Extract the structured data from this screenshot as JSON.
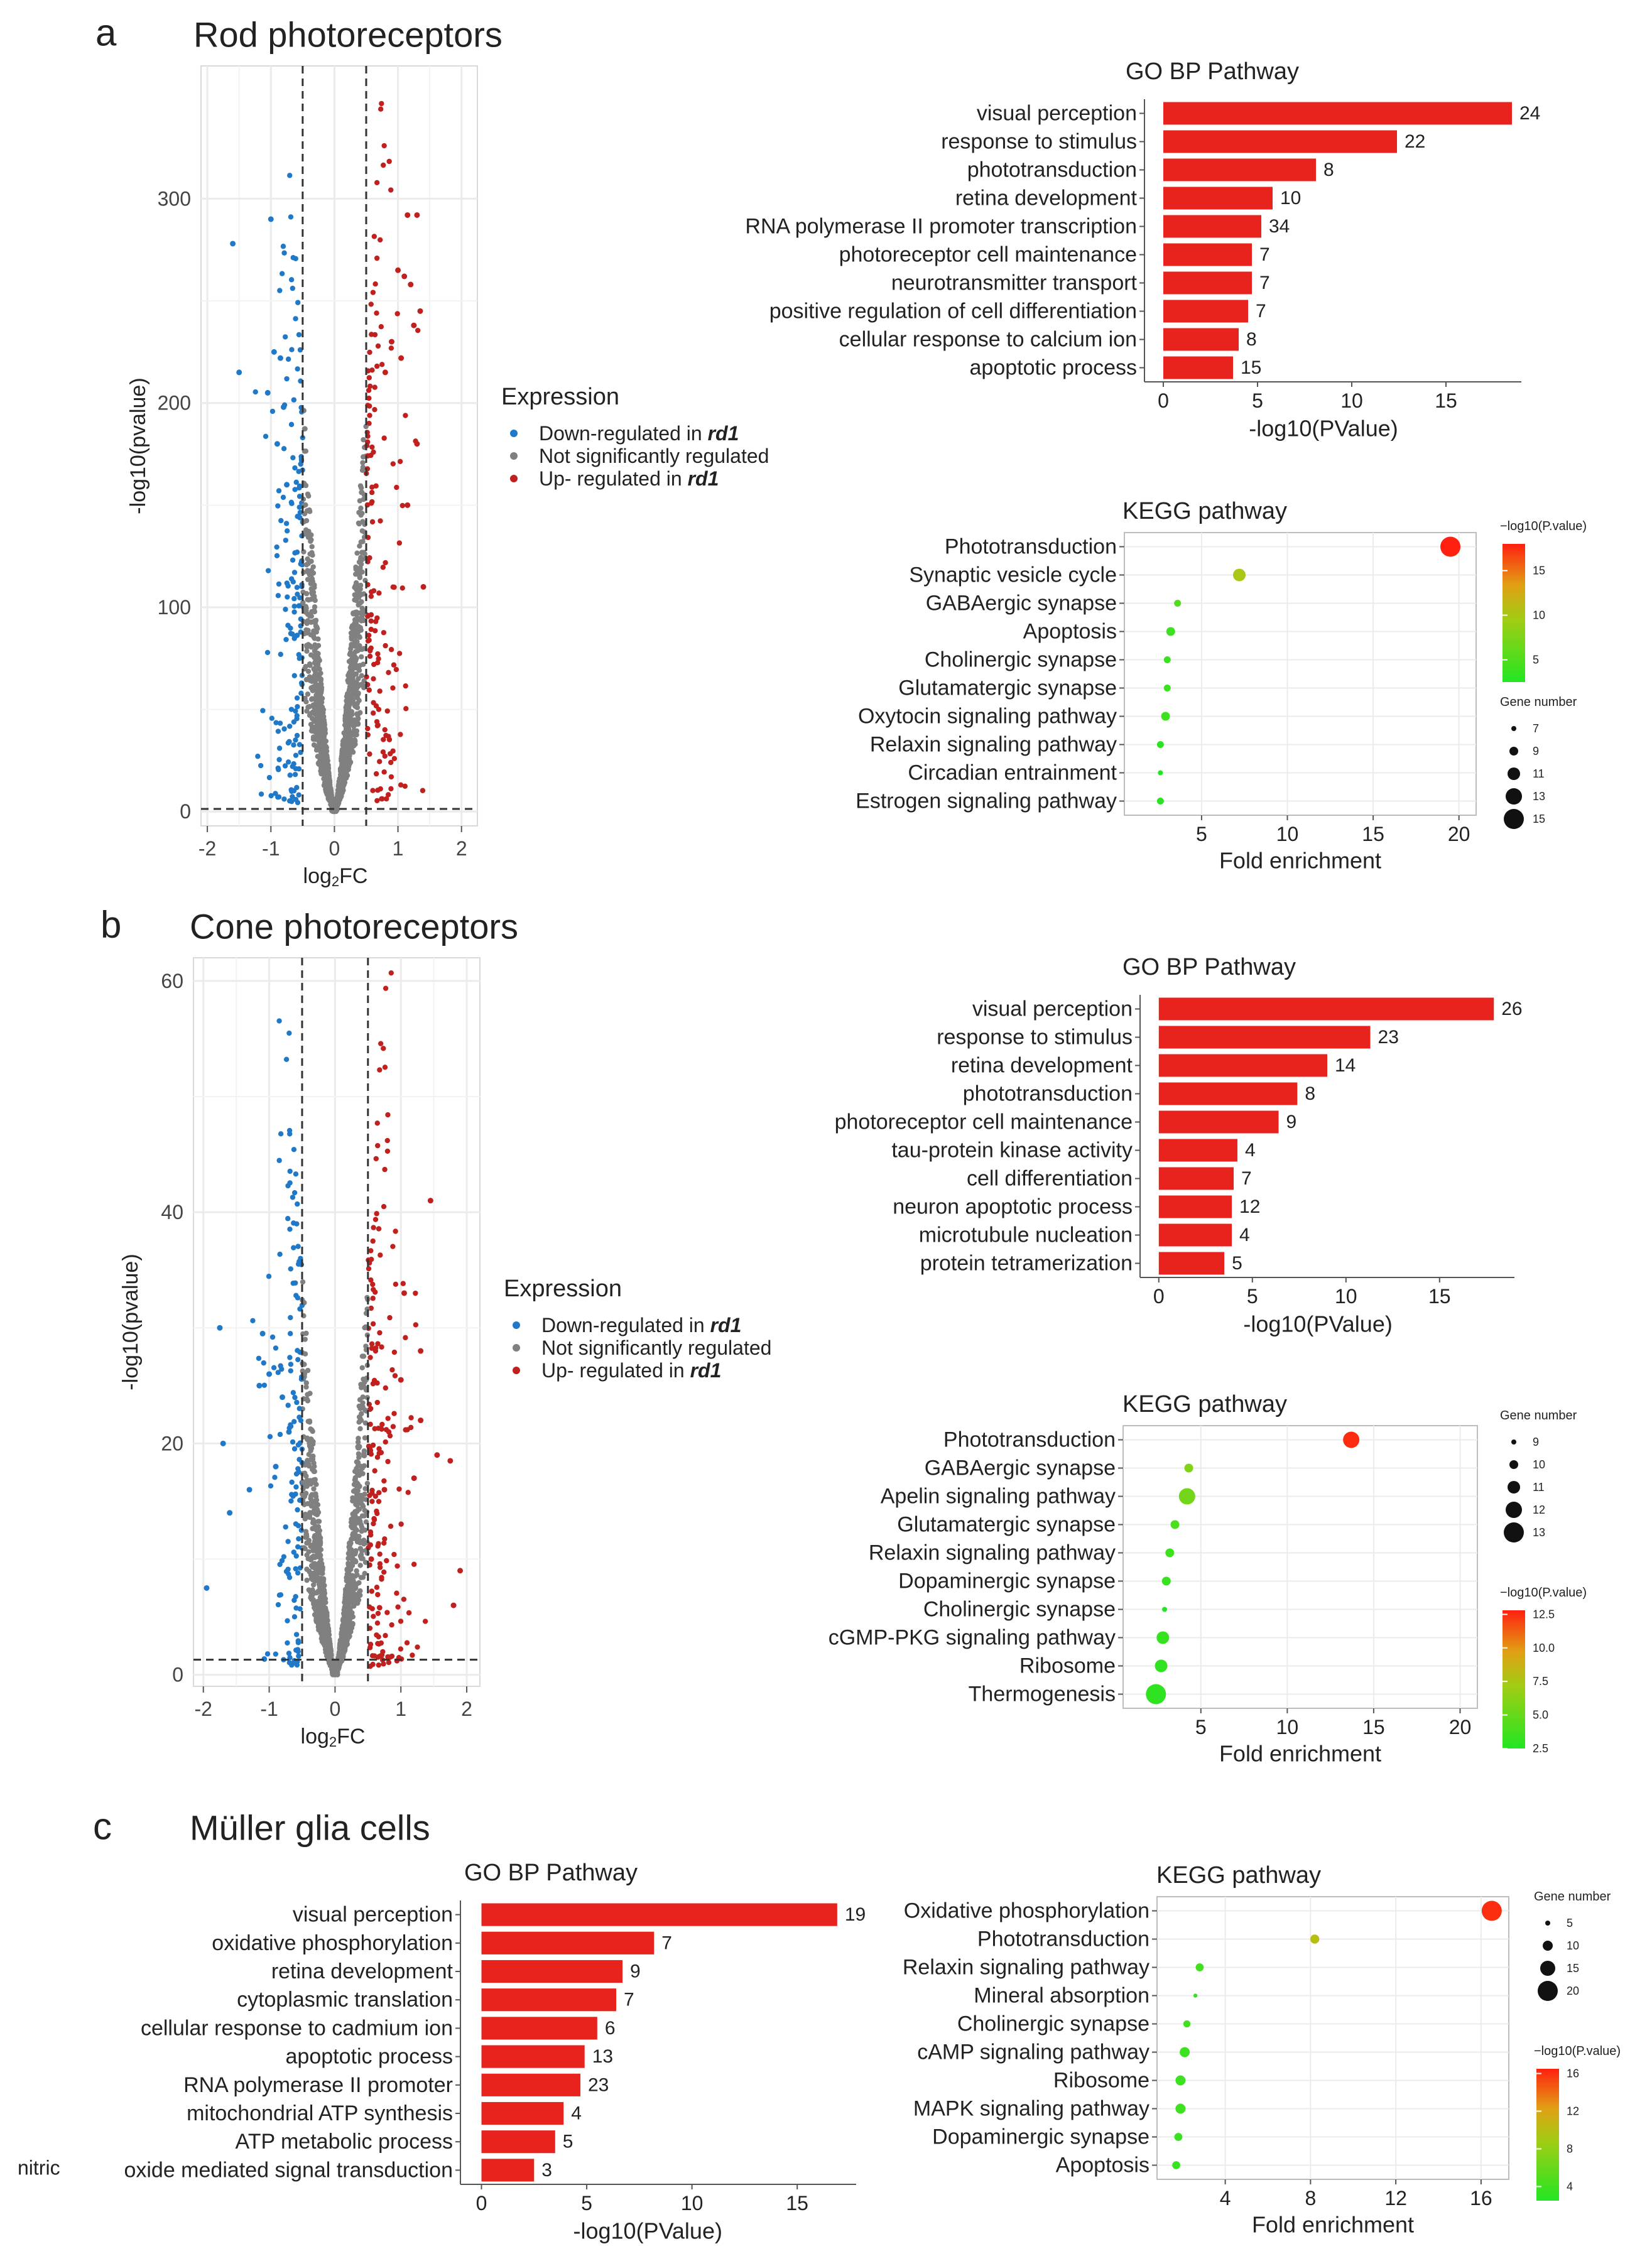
{
  "figure": {
    "panels": [
      {
        "letter": "a",
        "title": "Rod photoreceptors"
      },
      {
        "letter": "b",
        "title": "Cone photoreceptors"
      },
      {
        "letter": "c",
        "title": "Müller glia cells"
      }
    ],
    "legend": {
      "title": "Expression",
      "items": [
        {
          "pre": "Down-regulated in ",
          "em": "rd1",
          "color": "#1f78c8"
        },
        {
          "pre": "Not significantly regulated",
          "em": "",
          "color": "#808080"
        },
        {
          "pre": "Up- regulated in ",
          "em": "rd1",
          "color": "#c0201e"
        }
      ]
    },
    "colors": {
      "bar": "#e8231e",
      "down": "#1f78c8",
      "up": "#c0201e",
      "ns": "#808080",
      "grid": "#ebebeb",
      "low": "#22e622",
      "high": "#ff2010"
    },
    "size_legend_title": "Gene number",
    "color_legend_title": "−log10(P.value)"
  },
  "chart_data": [
    {
      "id": "rod-volcano",
      "type": "scatter",
      "panel": "a",
      "xlabel": "log2FC",
      "ylabel": "-log10(pvalue)",
      "xlim": [
        -2.1,
        2.25
      ],
      "ylim": [
        -7,
        365
      ],
      "xticks": [
        -2,
        -1,
        0,
        1,
        2
      ],
      "yticks": [
        0,
        100,
        200,
        300
      ],
      "thresholds": {
        "fc": 0.5,
        "y": 1.3
      },
      "highlight_down": [
        [
          -1.6,
          278
        ],
        [
          -1.0,
          290
        ],
        [
          -1.5,
          215
        ],
        [
          -0.95,
          225
        ],
        [
          -0.85,
          222
        ],
        [
          -1.05,
          205
        ],
        [
          -0.8,
          198
        ],
        [
          -0.9,
          180
        ],
        [
          -0.75,
          160
        ]
      ],
      "highlight_up": [
        [
          1.15,
          292
        ],
        [
          1.3,
          292
        ],
        [
          1.0,
          265
        ],
        [
          1.1,
          262
        ],
        [
          1.2,
          258
        ],
        [
          1.35,
          245
        ],
        [
          1.25,
          238
        ],
        [
          0.9,
          230
        ],
        [
          1.05,
          222
        ],
        [
          0.8,
          215
        ],
        [
          1.3,
          180
        ],
        [
          1.15,
          150
        ],
        [
          1.4,
          110
        ]
      ]
    },
    {
      "id": "rod-go",
      "type": "bar",
      "panel": "a",
      "title": "GO BP Pathway",
      "categories": [
        "visual perception",
        "response to stimulus",
        "phototransduction",
        "retina development",
        "RNA polymerase II promoter transcription",
        "photoreceptor cell maintenance",
        "neurotransmitter transport",
        "positive regulation of cell differentiation",
        "cellular response to calcium ion",
        "apoptotic process"
      ],
      "values": [
        18.5,
        12.4,
        8.1,
        5.8,
        5.2,
        4.7,
        4.7,
        4.5,
        4.0,
        3.7
      ],
      "labels": [
        "24",
        "22",
        "8",
        "10",
        "34",
        "7",
        "7",
        "7",
        "8",
        "15"
      ],
      "xlabel": "-log10(PValue)",
      "xlim": [
        -1,
        19
      ],
      "xticks": [
        0,
        5,
        10,
        15
      ]
    },
    {
      "id": "rod-kegg",
      "type": "scatter",
      "panel": "a",
      "title": "KEGG pathway",
      "categories": [
        "Phototransduction",
        "Synaptic vesicle cycle",
        "GABAergic synapse",
        "Apoptosis",
        "Cholinergic synapse",
        "Glutamatergic synapse",
        "Oxytocin signaling pathway",
        "Relaxin signaling pathway",
        "Circadian entrainment",
        "Estrogen signaling pathway"
      ],
      "values": [
        19.5,
        7.2,
        3.6,
        3.2,
        3.0,
        3.0,
        2.9,
        2.6,
        2.6,
        2.6
      ],
      "gene_number": [
        15,
        11,
        8,
        9,
        8,
        8,
        9,
        8,
        7,
        8
      ],
      "pvalue": [
        18,
        10,
        5,
        4,
        3.8,
        3.8,
        4,
        3,
        2.5,
        3
      ],
      "xlabel": "Fold enrichment",
      "xlim": [
        0.5,
        21
      ],
      "xticks": [
        5,
        10,
        15,
        20
      ],
      "size_legend": {
        "values": [
          7,
          9,
          11,
          13,
          15
        ],
        "labels": [
          "7",
          "9",
          "11",
          "13",
          "15"
        ]
      },
      "color_legend": {
        "min": 2.5,
        "max": 18,
        "labels": [
          "15",
          "10",
          "5"
        ],
        "label_values": [
          15,
          10,
          5
        ]
      }
    },
    {
      "id": "cone-volcano",
      "type": "scatter",
      "panel": "b",
      "xlabel": "log2FC",
      "ylabel": "-log10(pvalue)",
      "xlim": [
        -2.15,
        2.2
      ],
      "ylim": [
        -1,
        62
      ],
      "xticks": [
        -2,
        -1,
        0,
        1,
        2
      ],
      "yticks": [
        0,
        20,
        40,
        60
      ],
      "thresholds": {
        "fc": 0.5,
        "y": 1.3
      },
      "highlight_down": [
        [
          -1.75,
          30
        ],
        [
          -1.1,
          29.5
        ],
        [
          -1.7,
          20
        ],
        [
          -1.15,
          25
        ],
        [
          -1.0,
          26
        ],
        [
          -0.8,
          24
        ],
        [
          -0.7,
          21
        ],
        [
          -1.6,
          14
        ],
        [
          -0.9,
          18
        ],
        [
          -1.3,
          16
        ],
        [
          -1.95,
          7.5
        ]
      ],
      "highlight_up": [
        [
          1.45,
          41
        ],
        [
          1.05,
          33
        ],
        [
          1.3,
          28
        ],
        [
          1.0,
          25.5
        ],
        [
          1.3,
          22
        ],
        [
          1.75,
          18.5
        ],
        [
          1.55,
          19
        ],
        [
          1.2,
          17
        ],
        [
          0.75,
          16
        ],
        [
          1.9,
          9
        ],
        [
          1.8,
          6
        ],
        [
          0.55,
          10
        ]
      ]
    },
    {
      "id": "cone-go",
      "type": "bar",
      "panel": "b",
      "title": "GO BP Pathway",
      "categories": [
        "visual perception",
        "response to stimulus",
        "retina development",
        "phototransduction",
        "photoreceptor cell maintenance",
        "tau-protein kinase activity",
        "cell differentiation",
        "neuron apoptotic process",
        "microtubule nucleation",
        "protein tetramerization"
      ],
      "values": [
        17.9,
        11.3,
        9.0,
        7.4,
        6.4,
        4.2,
        4.0,
        3.9,
        3.9,
        3.5
      ],
      "labels": [
        "26",
        "23",
        "14",
        "8",
        "9",
        "4",
        "7",
        "12",
        "4",
        "5"
      ],
      "xlabel": "-log10(PValue)",
      "xlim": [
        -1,
        19
      ],
      "xticks": [
        0,
        5,
        10,
        15
      ]
    },
    {
      "id": "cone-kegg",
      "type": "scatter",
      "panel": "b",
      "title": "KEGG pathway",
      "categories": [
        "Phototransduction",
        "GABAergic synapse",
        "Apelin signaling pathway",
        "Glutamatergic synapse",
        "Relaxin signaling pathway",
        "Dopaminergic synapse",
        "Cholinergic synapse",
        "cGMP-PKG signaling pathway",
        "Ribosome",
        "Thermogenesis"
      ],
      "values": [
        13.7,
        4.3,
        4.2,
        3.5,
        3.2,
        3.0,
        2.9,
        2.8,
        2.7,
        2.4
      ],
      "gene_number": [
        12,
        10,
        12,
        10,
        10,
        10,
        9,
        11,
        11,
        13
      ],
      "pvalue": [
        12.5,
        6,
        5.5,
        4,
        3.5,
        3.3,
        2.5,
        3.2,
        3,
        3
      ],
      "xlabel": "Fold enrichment",
      "xlim": [
        0.5,
        21
      ],
      "xticks": [
        5,
        10,
        15,
        20
      ],
      "size_legend": {
        "values": [
          9,
          10,
          11,
          12,
          13
        ],
        "labels": [
          "9",
          "10",
          "11",
          "12",
          "13"
        ]
      },
      "color_legend": {
        "min": 2.5,
        "max": 12.8,
        "labels": [
          "12.5",
          "10.0",
          "7.5",
          "5.0",
          "2.5"
        ],
        "label_values": [
          12.5,
          10,
          7.5,
          5,
          2.5
        ]
      }
    },
    {
      "id": "muller-go",
      "type": "bar",
      "panel": "c",
      "title": "GO BP Pathway",
      "categories": [
        "visual perception",
        "oxidative phosphorylation",
        "retina development",
        "cytoplasmic translation",
        "cellular response to cadmium ion",
        "apoptotic process",
        "RNA polymerase II promoter",
        "mitochondrial ATP synthesis",
        "ATP metabolic process",
        "oxide mediated signal transduction"
      ],
      "category_prefix_last": "nitric",
      "values": [
        16.9,
        8.2,
        6.7,
        6.4,
        5.5,
        4.9,
        4.7,
        3.9,
        3.5,
        2.5
      ],
      "labels": [
        "19",
        "7",
        "9",
        "7",
        "6",
        "13",
        "23",
        "4",
        "5",
        "3"
      ],
      "xlabel": "-log10(PValue)",
      "xlim": [
        -1,
        17.8
      ],
      "xticks": [
        0,
        5,
        10,
        15
      ]
    },
    {
      "id": "muller-kegg",
      "type": "scatter",
      "panel": "c",
      "title": "KEGG pathway",
      "categories": [
        "Oxidative phosphorylation",
        "Phototransduction",
        "Relaxin signaling pathway",
        "Mineral absorption",
        "Cholinergic synapse",
        "cAMP signaling pathway",
        "Ribosome",
        "MAPK signaling pathway",
        "Dopaminergic synapse",
        "Apoptosis"
      ],
      "values": [
        16.5,
        8.2,
        2.8,
        2.6,
        2.2,
        2.1,
        1.9,
        1.9,
        1.8,
        1.7
      ],
      "gene_number": [
        20,
        9,
        8,
        4,
        7,
        10,
        10,
        10,
        8,
        8
      ],
      "pvalue": [
        16,
        10,
        4,
        3.5,
        4,
        3.8,
        3.8,
        3.9,
        3.6,
        3.6
      ],
      "xlabel": "Fold enrichment",
      "xlim": [
        0.8,
        17.3
      ],
      "xticks": [
        4,
        8,
        12,
        16
      ],
      "size_legend": {
        "values": [
          5,
          10,
          15,
          20
        ],
        "labels": [
          "5",
          "10",
          "15",
          "20"
        ]
      },
      "color_legend": {
        "min": 2.5,
        "max": 16.5,
        "labels": [
          "16",
          "12",
          "8",
          "4"
        ],
        "label_values": [
          16,
          12,
          8,
          4
        ]
      }
    }
  ]
}
